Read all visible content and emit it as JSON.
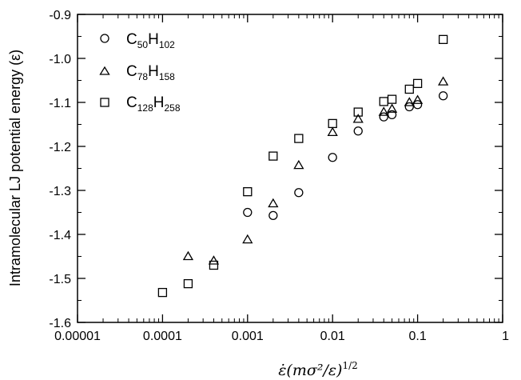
{
  "chart_data": {
    "type": "scatter",
    "xscale": "log",
    "xlim": [
      1e-05,
      1
    ],
    "ylim": [
      -1.6,
      -0.9
    ],
    "grid": false,
    "legend_position": "top-left",
    "ylabel": "Intramolecular LJ potential energy (ε)",
    "xlabel": {
      "rate_symbol": "ε̇",
      "expression": "(mσ²/ε)",
      "exponent": "1/2"
    },
    "x_tick_labels": [
      "0.00001",
      "0.0001",
      "0.001",
      "0.01",
      "0.1",
      "1"
    ],
    "x_ticks": [
      1e-05,
      0.0001,
      0.001,
      0.01,
      0.1,
      1
    ],
    "y_tick_labels": [
      "-0.9",
      "-1.0",
      "-1.1",
      "-1.2",
      "-1.3",
      "-1.4",
      "-1.5",
      "-1.6"
    ],
    "y_ticks": [
      -0.9,
      -1.0,
      -1.1,
      -1.2,
      -1.3,
      -1.4,
      -1.5,
      -1.6
    ],
    "series": [
      {
        "marker": "circle",
        "name_parts": {
          "base": "C",
          "sub1": "50",
          "mid": "H",
          "sub2": "102"
        },
        "x": [
          0.001,
          0.002,
          0.004,
          0.01,
          0.02,
          0.04,
          0.05,
          0.08,
          0.1,
          0.2
        ],
        "y": [
          -1.35,
          -1.357,
          -1.305,
          -1.225,
          -1.165,
          -1.133,
          -1.128,
          -1.11,
          -1.105,
          -1.085
        ]
      },
      {
        "marker": "triangle",
        "name_parts": {
          "base": "C",
          "sub1": "78",
          "mid": "H",
          "sub2": "158"
        },
        "x": [
          0.0002,
          0.0004,
          0.001,
          0.002,
          0.004,
          0.01,
          0.02,
          0.04,
          0.05,
          0.08,
          0.1,
          0.2
        ],
        "y": [
          -1.45,
          -1.46,
          -1.412,
          -1.33,
          -1.243,
          -1.168,
          -1.138,
          -1.122,
          -1.115,
          -1.1,
          -1.095,
          -1.053
        ]
      },
      {
        "marker": "square",
        "name_parts": {
          "base": "C",
          "sub1": "128",
          "mid": "H",
          "sub2": "258"
        },
        "x": [
          0.0001,
          0.0002,
          0.0004,
          0.001,
          0.002,
          0.004,
          0.01,
          0.02,
          0.04,
          0.05,
          0.08,
          0.1,
          0.2
        ],
        "y": [
          -1.532,
          -1.512,
          -1.47,
          -1.303,
          -1.222,
          -1.182,
          -1.148,
          -1.122,
          -1.098,
          -1.093,
          -1.07,
          -1.057,
          -0.957
        ]
      }
    ]
  }
}
